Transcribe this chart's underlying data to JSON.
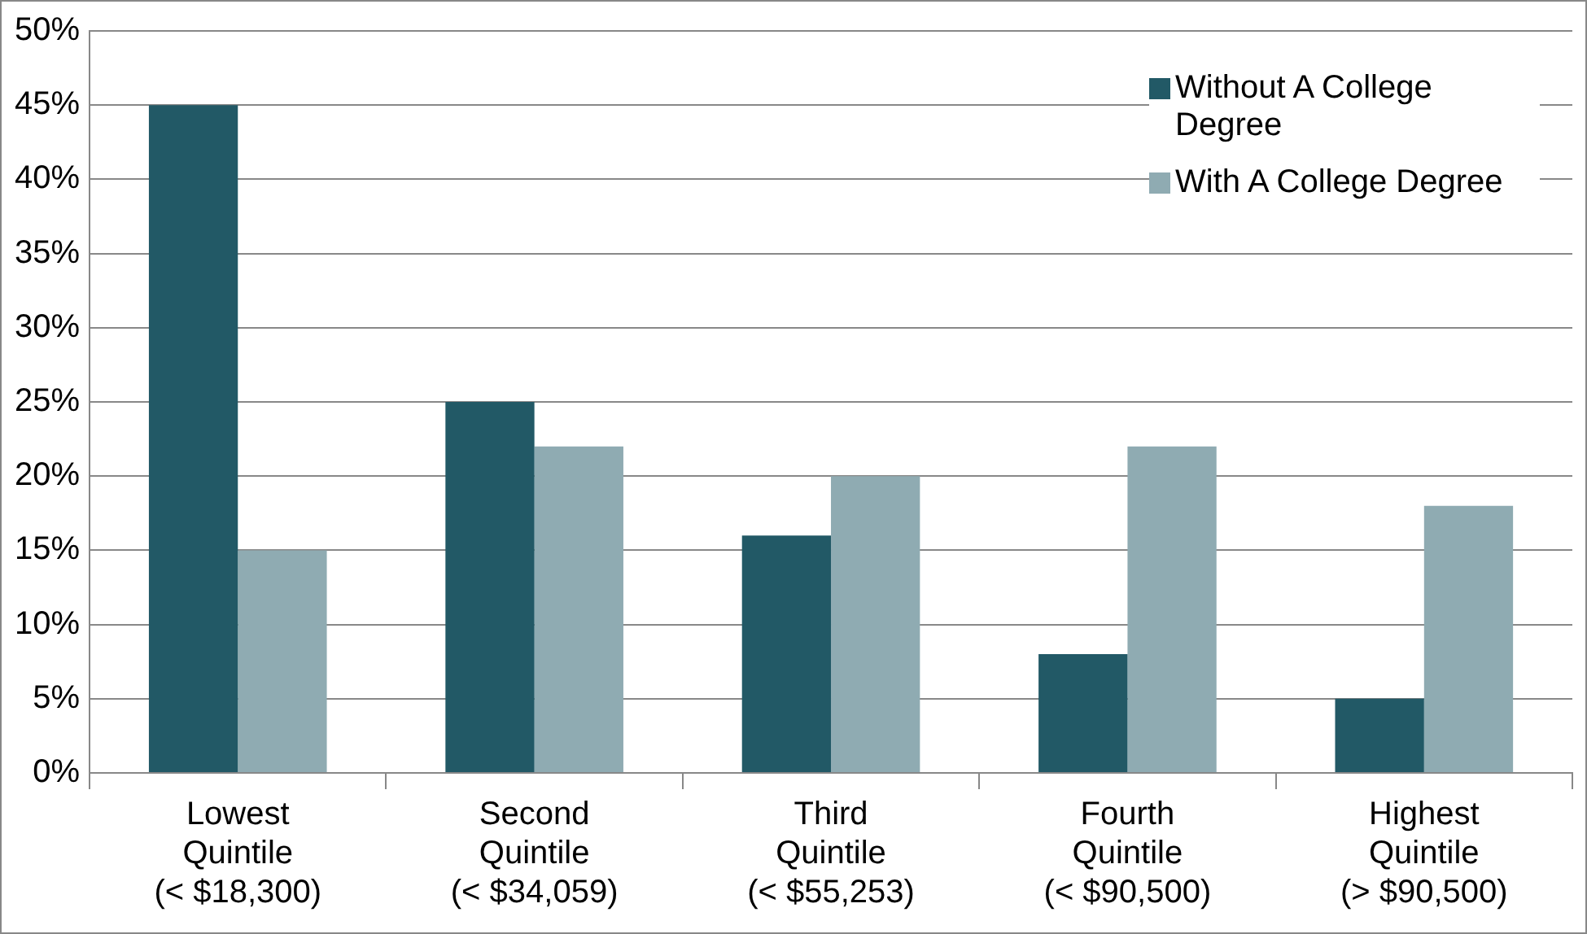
{
  "chart_data": {
    "type": "bar",
    "categories": [
      "Lowest\nQuintile\n(< $18,300)",
      "Second\nQuintile\n(< $34,059)",
      "Third\nQuintile\n(< $55,253)",
      "Fourth\nQuintile\n(< $90,500)",
      "Highest\nQuintile\n(> $90,500)"
    ],
    "series": [
      {
        "name": "Without A College Degree",
        "color": "#225966",
        "values": [
          45,
          25,
          16,
          8,
          5
        ]
      },
      {
        "name": "With A College Degree",
        "color": "#8fabb2",
        "values": [
          15,
          22,
          20,
          22,
          18
        ]
      }
    ],
    "ylim": [
      0,
      50
    ],
    "yticks": [
      {
        "value": 0,
        "label": "0%"
      },
      {
        "value": 5,
        "label": "5%"
      },
      {
        "value": 10,
        "label": "10%"
      },
      {
        "value": 15,
        "label": "15%"
      },
      {
        "value": 20,
        "label": "20%"
      },
      {
        "value": 25,
        "label": "25%"
      },
      {
        "value": 30,
        "label": "30%"
      },
      {
        "value": 35,
        "label": "35%"
      },
      {
        "value": 40,
        "label": "40%"
      },
      {
        "value": 45,
        "label": "45%"
      },
      {
        "value": 50,
        "label": "50%"
      }
    ],
    "grid": "y",
    "legend": "top right"
  }
}
